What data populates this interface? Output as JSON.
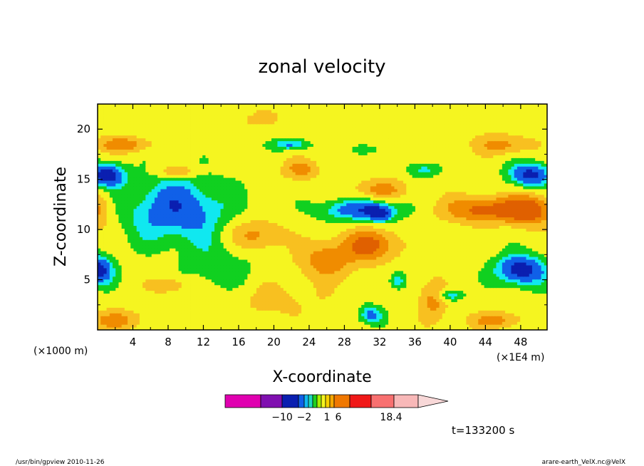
{
  "chart_data": {
    "type": "heatmap",
    "title": "zonal velocity",
    "xlabel": "X-coordinate",
    "ylabel": "Z-coordinate",
    "x_unit_left": "(×1000 m)",
    "x_unit_right": "(×1E4 m)",
    "xlim": [
      0,
      51
    ],
    "ylim": [
      0,
      22.5
    ],
    "x_ticks": [
      "4",
      "8",
      "12",
      "16",
      "20",
      "24",
      "28",
      "32",
      "36",
      "40",
      "44",
      "48"
    ],
    "y_ticks": [
      "5",
      "10",
      "15",
      "20"
    ],
    "time_label": "t=133200 s",
    "colorbar": {
      "colors": [
        "#e000b0",
        "#8010b0",
        "#0a1fb0",
        "#1060e8",
        "#10b8f0",
        "#20d8c0",
        "#20d020",
        "#a8f000",
        "#f5f520",
        "#f8d000",
        "#f8a800",
        "#f07800",
        "#f01818",
        "#f87070",
        "#f8b8b8",
        "#f8d8d8"
      ],
      "tick_labels": [
        {
          "text": "−10",
          "at_bin": 2
        },
        {
          "text": "−2",
          "at_bin": 4
        },
        {
          "text": "1",
          "at_bin": 5.1
        },
        {
          "text": "6",
          "at_bin": 6.1
        },
        {
          "text": "18.4",
          "at_bin": 9
        }
      ]
    },
    "levels": [
      {
        "name": "cyan",
        "color": "#10e8f0",
        "threshold": 0.3
      },
      {
        "name": "green",
        "color": "#10d020",
        "threshold": 0.4
      },
      {
        "name": "yellow",
        "color": "#f5f520",
        "threshold": 0.55
      },
      {
        "name": "gold",
        "color": "#f8c020",
        "threshold": 0.7
      },
      {
        "name": "orange",
        "color": "#f08c00",
        "threshold": 0.85
      },
      {
        "name": "dark-orange",
        "color": "#e06000",
        "threshold": 1.0
      }
    ],
    "negative_levels": [
      {
        "name": "blue",
        "color": "#1060e8",
        "threshold": 0.22
      },
      {
        "name": "dark-blue",
        "color": "#0a1fb0",
        "threshold": 0.1
      }
    ],
    "features": [
      {
        "x": 9,
        "z": 12,
        "sx": 6,
        "sz": 3.5,
        "amp": -0.35
      },
      {
        "x": 1,
        "z": 15.5,
        "sx": 2,
        "sz": 1.2,
        "amp": -0.45
      },
      {
        "x": 0,
        "z": 6,
        "sx": 1.8,
        "sz": 1.5,
        "amp": -0.45
      },
      {
        "x": 48,
        "z": 6,
        "sx": 3,
        "sz": 1.6,
        "amp": -0.45
      },
      {
        "x": 49,
        "z": 15.5,
        "sx": 2.5,
        "sz": 1.3,
        "amp": -0.42
      },
      {
        "x": 30,
        "z": 12,
        "sx": 5,
        "sz": 1.2,
        "amp": -0.35
      },
      {
        "x": 32,
        "z": 11.5,
        "sx": 1.3,
        "sz": 0.8,
        "amp": -0.25
      },
      {
        "x": 22,
        "z": 18.5,
        "sx": 2,
        "sz": 0.6,
        "amp": -0.3
      },
      {
        "x": 30,
        "z": 18,
        "sx": 1.5,
        "sz": 0.6,
        "amp": -0.2
      },
      {
        "x": 37,
        "z": 16,
        "sx": 2,
        "sz": 0.8,
        "amp": -0.2
      },
      {
        "x": 40,
        "z": 3.5,
        "sx": 1.5,
        "sz": 0.6,
        "amp": -0.3
      },
      {
        "x": 31,
        "z": 1.5,
        "sx": 1.5,
        "sz": 1,
        "amp": -0.3
      },
      {
        "x": 34,
        "z": 5,
        "sx": 1,
        "sz": 1,
        "amp": -0.25
      },
      {
        "x": 14,
        "z": 6,
        "sx": 4,
        "sz": 2.5,
        "amp": -0.15
      },
      {
        "x": 20,
        "z": 3,
        "sx": 6,
        "sz": 2,
        "amp": 0.12
      },
      {
        "x": 18,
        "z": 21,
        "sx": 4,
        "sz": 1,
        "amp": 0.1
      },
      {
        "x": 3,
        "z": 18.5,
        "sx": 3,
        "sz": 0.8,
        "amp": 0.35
      },
      {
        "x": 9,
        "z": 15.8,
        "sx": 2,
        "sz": 0.6,
        "amp": 0.3
      },
      {
        "x": 0,
        "z": 12,
        "sx": 1.5,
        "sz": 1.8,
        "amp": 0.3
      },
      {
        "x": 18,
        "z": 9.5,
        "sx": 3,
        "sz": 1.5,
        "amp": 0.3
      },
      {
        "x": 31,
        "z": 8.5,
        "sx": 3,
        "sz": 1.6,
        "amp": 0.45
      },
      {
        "x": 26,
        "z": 7,
        "sx": 3,
        "sz": 1.8,
        "amp": 0.35
      },
      {
        "x": 23,
        "z": 16,
        "sx": 2,
        "sz": 1,
        "amp": 0.3
      },
      {
        "x": 32,
        "z": 14,
        "sx": 3,
        "sz": 1,
        "amp": 0.3
      },
      {
        "x": 44,
        "z": 12,
        "sx": 5,
        "sz": 1.3,
        "amp": 0.45
      },
      {
        "x": 49,
        "z": 12,
        "sx": 2.5,
        "sz": 1.5,
        "amp": 0.45
      },
      {
        "x": 46,
        "z": 18.5,
        "sx": 3,
        "sz": 1,
        "amp": 0.3
      },
      {
        "x": 2,
        "z": 1,
        "sx": 3,
        "sz": 1,
        "amp": 0.3
      },
      {
        "x": 45,
        "z": 1,
        "sx": 3,
        "sz": 0.8,
        "amp": 0.3
      },
      {
        "x": 8,
        "z": 4.5,
        "sx": 2,
        "sz": 0.8,
        "amp": 0.25
      },
      {
        "x": 38,
        "z": 3,
        "sx": 1.5,
        "sz": 2,
        "amp": 0.3
      }
    ]
  },
  "footer": {
    "left": "/usr/bin/gpview   2010-11-26",
    "right": "arare-earth_VelX.nc@VelX"
  }
}
